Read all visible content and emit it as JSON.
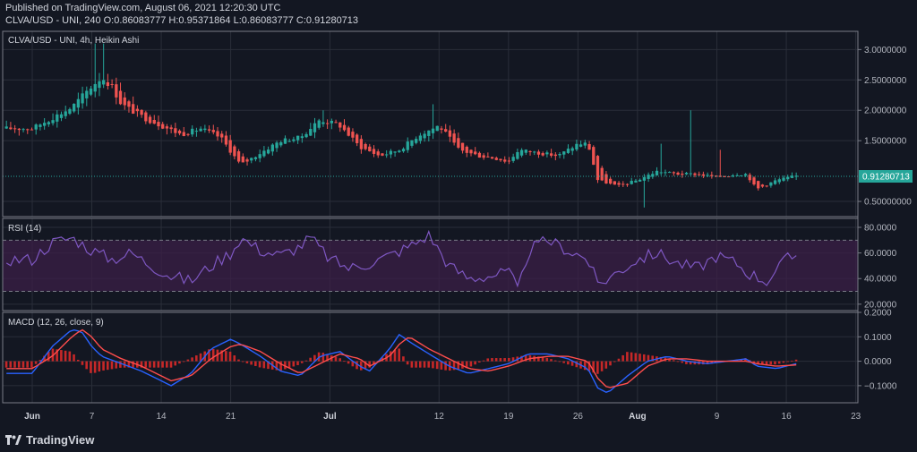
{
  "header": {
    "published": "Published on TradingView.com, August 06, 2021 12:20:30 UTC",
    "ohlc": "CLVA/USD - UNI, 240  O:0.86083777  H:0.95371864  L:0.86083777  C:0.91280713"
  },
  "footer": {
    "brand": "TradingView"
  },
  "colors": {
    "bg": "#131722",
    "up": "#26a69a",
    "down": "#ef5350",
    "grid": "#2a2e39",
    "rsi": "#7e57c2",
    "rsi_band": "#3b1f47",
    "macd": "#2962ff",
    "signal": "#ff4d4d",
    "price_label": "#26a69a",
    "text": "#b2b5be",
    "border": "#787b86"
  },
  "chart_data": [
    {
      "type": "candlestick",
      "title": "CLVA/USD - UNI, 4h, Heikin Ashi",
      "ylim": [
        0.25,
        3.3
      ],
      "yticks": [
        "3.0000000",
        "2.5000000",
        "2.0000000",
        "1.5000000",
        "0.50000000"
      ],
      "ytick_values": [
        3.0,
        2.5,
        2.0,
        1.5,
        0.5
      ],
      "last_price_label": "0.91280713",
      "last_price": 0.9128,
      "keypoints": [
        [
          0,
          1.7
        ],
        [
          4,
          2.05
        ],
        [
          6,
          2.4
        ],
        [
          7,
          2.55
        ],
        [
          8,
          2.4
        ],
        [
          9,
          2.1
        ],
        [
          11,
          1.9
        ],
        [
          13,
          1.75
        ],
        [
          15,
          1.6
        ],
        [
          17,
          1.7
        ],
        [
          19,
          1.55
        ],
        [
          21,
          1.1
        ],
        [
          23,
          1.3
        ],
        [
          25,
          1.5
        ],
        [
          27,
          1.55
        ],
        [
          29,
          1.85
        ],
        [
          31,
          1.75
        ],
        [
          33,
          1.4
        ],
        [
          35,
          1.25
        ],
        [
          37,
          1.35
        ],
        [
          39,
          1.6
        ],
        [
          41,
          1.75
        ],
        [
          42,
          1.55
        ],
        [
          43,
          1.35
        ],
        [
          45,
          1.25
        ],
        [
          47,
          1.2
        ],
        [
          48,
          1.15
        ],
        [
          49,
          1.35
        ],
        [
          51,
          1.3
        ],
        [
          53,
          1.25
        ],
        [
          55,
          1.45
        ],
        [
          56,
          1.45
        ],
        [
          57,
          0.85
        ],
        [
          59,
          0.75
        ],
        [
          61,
          0.85
        ],
        [
          63,
          1.0
        ],
        [
          65,
          0.95
        ],
        [
          67,
          0.95
        ],
        [
          69,
          0.9
        ],
        [
          71,
          0.95
        ],
        [
          72,
          0.95
        ],
        [
          73,
          0.7
        ],
        [
          75,
          0.85
        ],
        [
          77,
          0.92
        ]
      ],
      "spikes": [
        {
          "day": 6.5,
          "high": 3.1
        },
        {
          "day": 7.0,
          "high": 3.1
        },
        {
          "day": 29.5,
          "high": 2.0
        },
        {
          "day": 40.5,
          "high": 2.1
        },
        {
          "day": 63.5,
          "high": 1.45
        },
        {
          "day": 66.5,
          "high": 2.0
        },
        {
          "day": 69.5,
          "high": 1.35
        },
        {
          "day": 61.8,
          "low": 0.4
        }
      ]
    },
    {
      "type": "line",
      "title": "RSI (14)",
      "ylim": [
        15,
        87
      ],
      "yticks": [
        "80.0000",
        "60.0000",
        "40.0000",
        "20.0000"
      ],
      "ytick_values": [
        80,
        60,
        40,
        20
      ],
      "band": [
        30,
        70
      ],
      "keypoints": [
        [
          0,
          55
        ],
        [
          2,
          68
        ],
        [
          4,
          72
        ],
        [
          6,
          62
        ],
        [
          8,
          55
        ],
        [
          10,
          60
        ],
        [
          12,
          50
        ],
        [
          14,
          42
        ],
        [
          16,
          38
        ],
        [
          18,
          50
        ],
        [
          20,
          60
        ],
        [
          21,
          72
        ],
        [
          23,
          62
        ],
        [
          25,
          58
        ],
        [
          27,
          65
        ],
        [
          28,
          72
        ],
        [
          30,
          55
        ],
        [
          32,
          48
        ],
        [
          34,
          52
        ],
        [
          36,
          58
        ],
        [
          38,
          65
        ],
        [
          40,
          74
        ],
        [
          42,
          50
        ],
        [
          44,
          40
        ],
        [
          46,
          42
        ],
        [
          48,
          45
        ],
        [
          49,
          30
        ],
        [
          50,
          62
        ],
        [
          52,
          70
        ],
        [
          54,
          62
        ],
        [
          56,
          55
        ],
        [
          57,
          35
        ],
        [
          59,
          45
        ],
        [
          61,
          55
        ],
        [
          63,
          60
        ],
        [
          65,
          52
        ],
        [
          67,
          48
        ],
        [
          69,
          58
        ],
        [
          71,
          52
        ],
        [
          72,
          45
        ],
        [
          74,
          38
        ],
        [
          76,
          55
        ],
        [
          77,
          58
        ]
      ]
    },
    {
      "type": "bar+line",
      "title": "MACD (12, 26, close, 9)",
      "ylim": [
        -0.17,
        0.2
      ],
      "yticks": [
        "0.2000",
        "0.1000",
        "0.0000",
        "−0.1000"
      ],
      "ytick_values": [
        0.2,
        0.1,
        0.0,
        -0.1
      ],
      "macd_keypoints": [
        [
          0,
          -0.05
        ],
        [
          2,
          0.06
        ],
        [
          4,
          0.13
        ],
        [
          5,
          0.12
        ],
        [
          6,
          0.06
        ],
        [
          7,
          0.02
        ],
        [
          9,
          -0.01
        ],
        [
          11,
          -0.04
        ],
        [
          13,
          -0.08
        ],
        [
          14,
          -0.1
        ],
        [
          16,
          -0.05
        ],
        [
          18,
          0.05
        ],
        [
          20,
          0.09
        ],
        [
          21,
          0.07
        ],
        [
          23,
          0.02
        ],
        [
          25,
          -0.04
        ],
        [
          27,
          -0.06
        ],
        [
          29,
          0.02
        ],
        [
          31,
          0.04
        ],
        [
          33,
          -0.02
        ],
        [
          34,
          -0.04
        ],
        [
          36,
          0.05
        ],
        [
          37,
          0.11
        ],
        [
          38,
          0.08
        ],
        [
          40,
          0.03
        ],
        [
          42,
          -0.02
        ],
        [
          44,
          -0.05
        ],
        [
          46,
          -0.03
        ],
        [
          48,
          -0.01
        ],
        [
          50,
          0.03
        ],
        [
          52,
          0.03
        ],
        [
          54,
          0.01
        ],
        [
          56,
          -0.03
        ],
        [
          57,
          -0.11
        ],
        [
          58,
          -0.13
        ],
        [
          60,
          -0.06
        ],
        [
          62,
          0.0
        ],
        [
          64,
          0.02
        ],
        [
          66,
          0.0
        ],
        [
          68,
          -0.01
        ],
        [
          70,
          0.0
        ],
        [
          72,
          0.01
        ],
        [
          73,
          -0.02
        ],
        [
          75,
          -0.03
        ],
        [
          77,
          -0.01
        ]
      ],
      "signal_keypoints": [
        [
          0,
          -0.03
        ],
        [
          2,
          0.02
        ],
        [
          4,
          0.1
        ],
        [
          5,
          0.13
        ],
        [
          6,
          0.1
        ],
        [
          7,
          0.05
        ],
        [
          9,
          0.01
        ],
        [
          11,
          -0.02
        ],
        [
          13,
          -0.06
        ],
        [
          14,
          -0.08
        ],
        [
          16,
          -0.06
        ],
        [
          18,
          0.01
        ],
        [
          20,
          0.06
        ],
        [
          21,
          0.07
        ],
        [
          23,
          0.04
        ],
        [
          25,
          -0.01
        ],
        [
          27,
          -0.05
        ],
        [
          29,
          -0.01
        ],
        [
          31,
          0.03
        ],
        [
          33,
          0.01
        ],
        [
          34,
          -0.02
        ],
        [
          36,
          0.02
        ],
        [
          37,
          0.07
        ],
        [
          38,
          0.1
        ],
        [
          40,
          0.05
        ],
        [
          42,
          0.01
        ],
        [
          44,
          -0.03
        ],
        [
          46,
          -0.04
        ],
        [
          48,
          -0.02
        ],
        [
          50,
          0.01
        ],
        [
          52,
          0.02
        ],
        [
          54,
          0.02
        ],
        [
          56,
          0.0
        ],
        [
          57,
          -0.07
        ],
        [
          58,
          -0.11
        ],
        [
          60,
          -0.09
        ],
        [
          62,
          -0.02
        ],
        [
          64,
          0.01
        ],
        [
          66,
          0.01
        ],
        [
          68,
          0.0
        ],
        [
          70,
          0.0
        ],
        [
          72,
          0.0
        ],
        [
          73,
          -0.01
        ],
        [
          75,
          -0.02
        ],
        [
          77,
          -0.015
        ]
      ]
    }
  ],
  "xaxis": {
    "ticks": [
      {
        "label": "Jun",
        "day": 0,
        "bold": true
      },
      {
        "label": "7",
        "day": 6,
        "bold": false
      },
      {
        "label": "14",
        "day": 13,
        "bold": false
      },
      {
        "label": "21",
        "day": 20,
        "bold": false
      },
      {
        "label": "Jul",
        "day": 30,
        "bold": true
      },
      {
        "label": "12",
        "day": 41,
        "bold": false
      },
      {
        "label": "19",
        "day": 48,
        "bold": false
      },
      {
        "label": "26",
        "day": 55,
        "bold": false
      },
      {
        "label": "Aug",
        "day": 61,
        "bold": true
      },
      {
        "label": "9",
        "day": 69,
        "bold": false
      },
      {
        "label": "16",
        "day": 76,
        "bold": false
      },
      {
        "label": "23",
        "day": 83,
        "bold": false
      }
    ]
  }
}
